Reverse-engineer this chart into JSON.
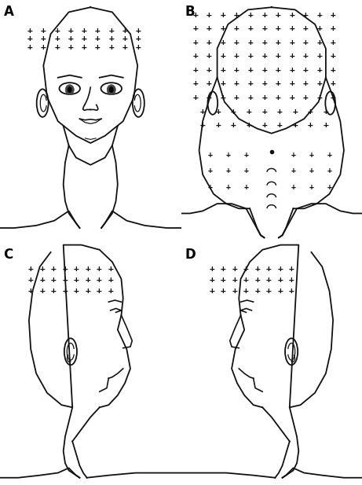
{
  "bg_color": "#ffffff",
  "label_A": "A",
  "label_B": "B",
  "label_C": "C",
  "label_D": "D",
  "label_fontsize": 12,
  "cross_fontsize": 7,
  "cross_fontsize_B": 8,
  "cross_color": "#111111",
  "line_color": "#111111",
  "line_width": 1.3
}
